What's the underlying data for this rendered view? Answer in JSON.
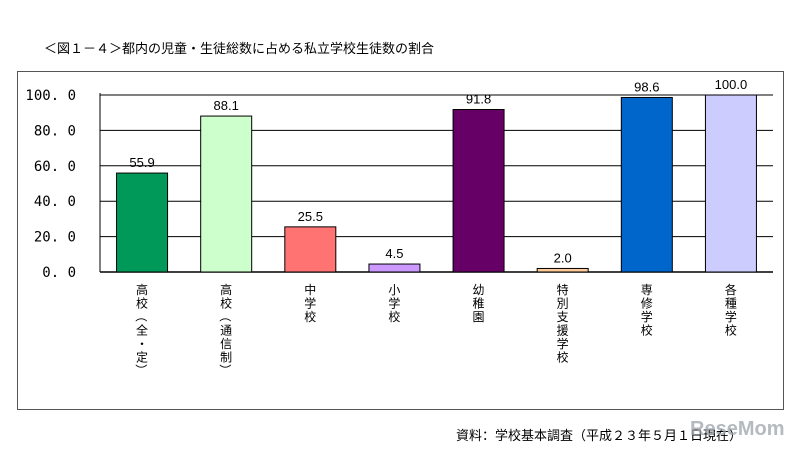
{
  "title": "＜図１－４＞都内の児童・生徒総数に占める私立学校生徒数の割合",
  "source": "資料：学校基本調査（平成２３年５月１日現在）",
  "watermark": "ReseMom",
  "chart_data": {
    "type": "bar",
    "categories": [
      "高校（全・定）",
      "高校（通信制）",
      "中学校",
      "小学校",
      "幼稚園",
      "特別支援学校",
      "専修学校",
      "各種学校"
    ],
    "values": [
      55.9,
      88.1,
      25.5,
      4.5,
      91.8,
      2.0,
      98.6,
      100.0
    ],
    "value_labels": [
      "55.9",
      "88.1",
      "25.5",
      "4.5",
      "91.8",
      "2.0",
      "98.6",
      "100.0"
    ],
    "colors": [
      "#00995a",
      "#ccffcc",
      "#ff7373",
      "#cc99ff",
      "#660066",
      "#ffcc99",
      "#0066cc",
      "#ccccff"
    ],
    "ylim": [
      0,
      100
    ],
    "yticks": [
      "0.0",
      "20.0",
      "40.0",
      "60.0",
      "80.0",
      "100.0"
    ],
    "grid": true,
    "xlabel": "",
    "ylabel": ""
  }
}
